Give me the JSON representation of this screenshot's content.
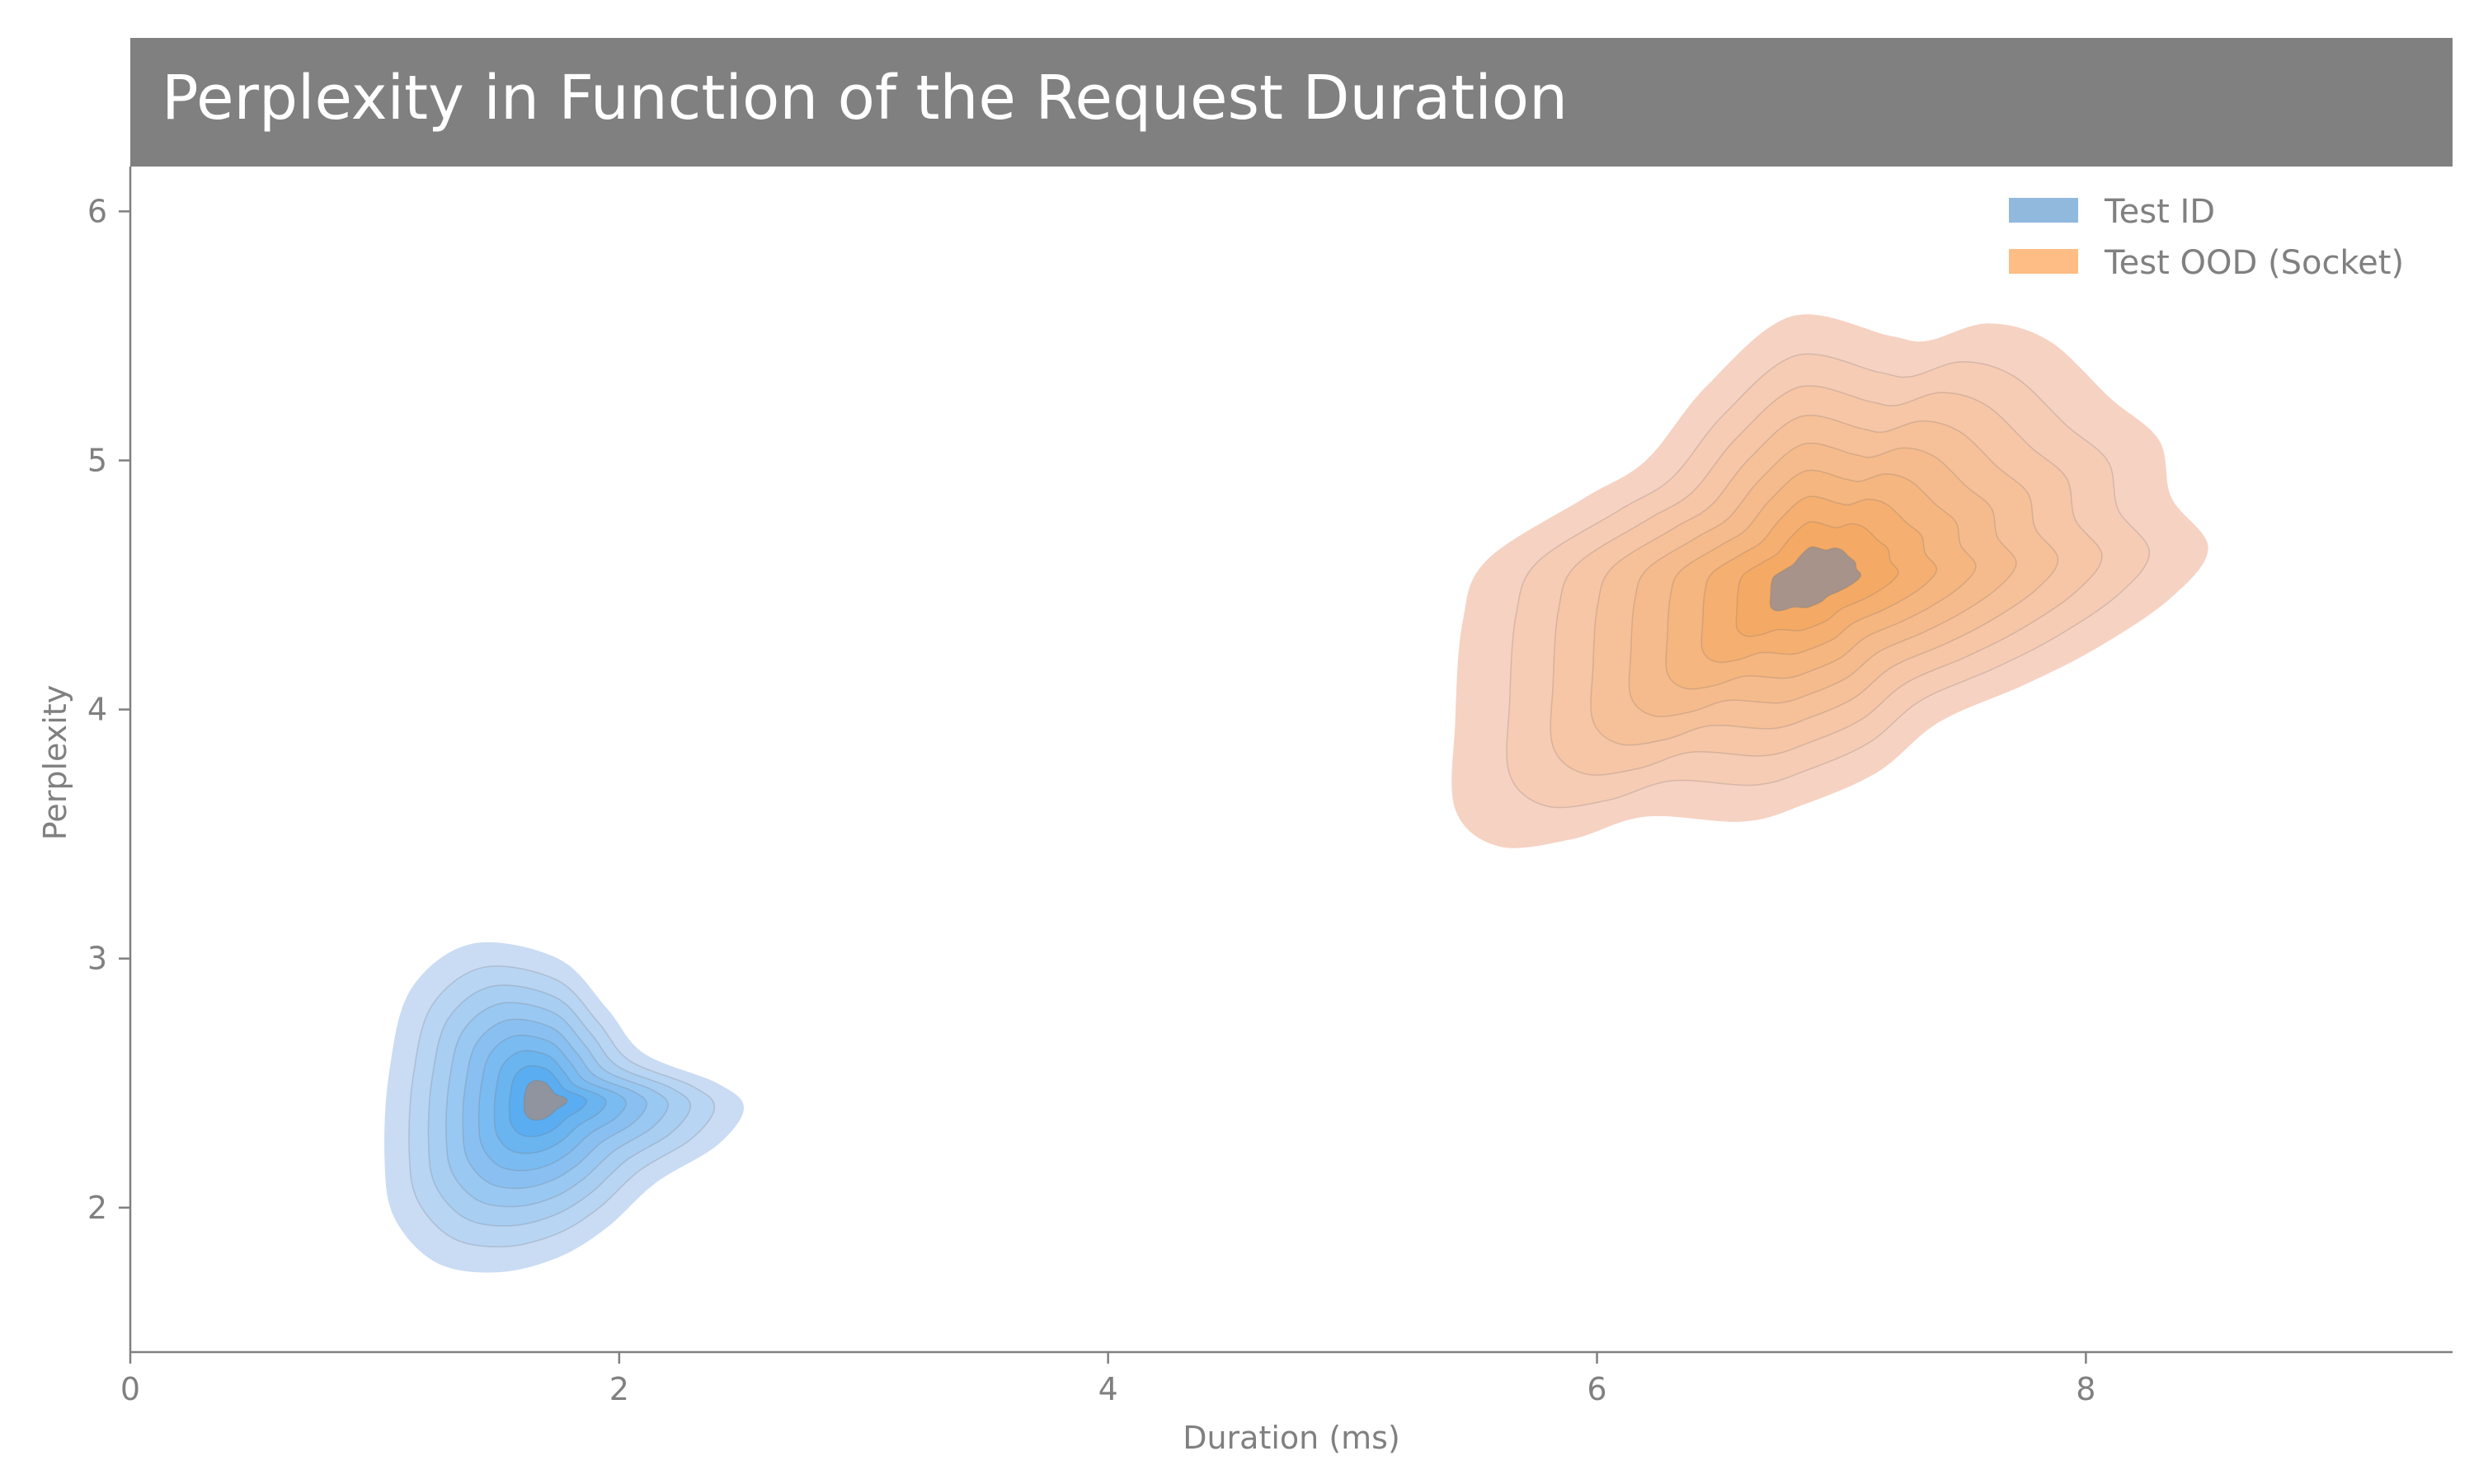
{
  "chart_data": {
    "type": "kde_contour",
    "title": "Perplexity in Function of the Request Duration",
    "xlabel": "Duration (ms)",
    "ylabel": "Perplexity",
    "xlim": [
      0,
      9.5
    ],
    "ylim": [
      1.42,
      6.18
    ],
    "xticks": [
      0,
      2,
      4,
      6,
      8
    ],
    "yticks": [
      2,
      3,
      4,
      5,
      6
    ],
    "grid": false,
    "legend_position": "top-right",
    "series": [
      {
        "name": "Test ID",
        "color": "#91b9de",
        "fill_light": "#c6daf2",
        "fill_dark": "#4aa6ee",
        "peak": {
          "x": 1.6,
          "y": 2.45
        },
        "x_range": [
          1.03,
          2.51
        ],
        "y_range": [
          1.74,
          3.08
        ]
      },
      {
        "name": "Test OOD (Socket)",
        "color": "#fdbd85",
        "fill_light": "#f6d0c0",
        "fill_dark": "#f3a456",
        "peak": {
          "x": 6.72,
          "y": 4.47
        },
        "x_range": [
          5.4,
          8.5
        ],
        "y_range": [
          3.45,
          5.6
        ]
      }
    ]
  }
}
